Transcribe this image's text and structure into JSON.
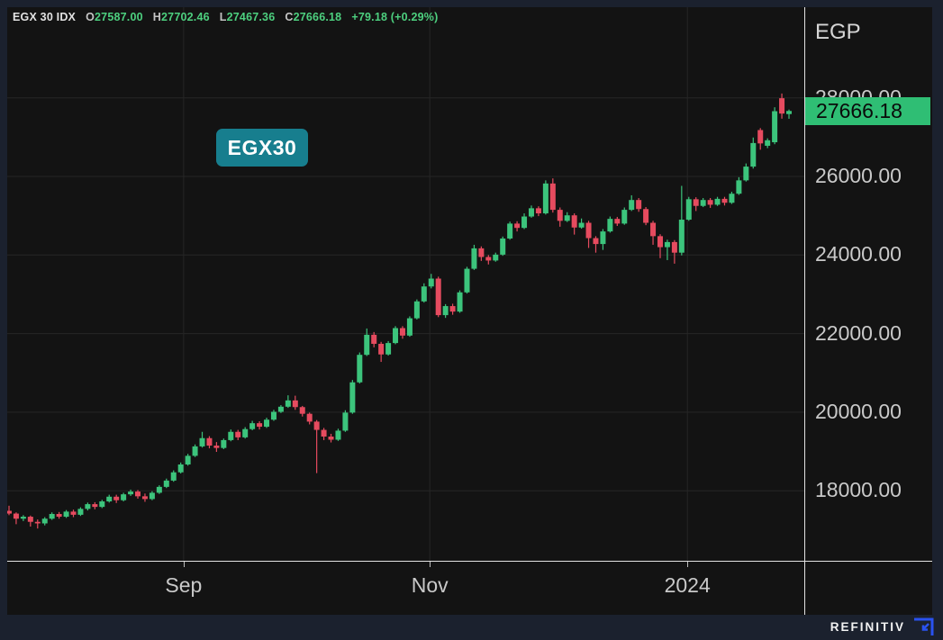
{
  "legend": {
    "instrument": "EGX 30 IDX",
    "o_label": "O",
    "o_value": "27587.00",
    "h_label": "H",
    "h_value": "27702.46",
    "l_label": "L",
    "l_value": "27467.36",
    "c_label": "C",
    "c_value": "27666.18",
    "change": "+79.18 (+0.29%)"
  },
  "badges": {
    "series_label": "EGX30",
    "last_price": "27666.18"
  },
  "axis": {
    "currency": "EGP"
  },
  "branding": {
    "wordmark": "REFINITIV"
  },
  "colors": {
    "up": "#3cc47c",
    "down": "#e64b5f",
    "grid": "#262626",
    "axis_text": "#c9c9c9",
    "last_price_badge": "#2fbe74",
    "series_badge": "#177e8e",
    "legend_value": "#4dd07f",
    "refinitiv_blue": "#2a52f0"
  },
  "chart_data": {
    "type": "candlestick",
    "title": "EGX 30 IDX",
    "currency": "EGP",
    "legend_position": "top-left",
    "grid": true,
    "ylim": [
      16800,
      28400
    ],
    "last_close": 27666.18,
    "y_ticks": [
      "28000.00",
      "26000.00",
      "24000.00",
      "22000.00",
      "20000.00",
      "18000.00"
    ],
    "y_tick_values": [
      28000,
      26000,
      24000,
      22000,
      20000,
      18000
    ],
    "x_ticks": [
      {
        "label": "Sep",
        "index": 24.4
      },
      {
        "label": "Nov",
        "index": 58.8
      },
      {
        "label": "2024",
        "index": 94.8
      }
    ],
    "candles_ohlc": [
      [
        17490,
        17620,
        17380,
        17420
      ],
      [
        17420,
        17450,
        17150,
        17290
      ],
      [
        17290,
        17380,
        17230,
        17340
      ],
      [
        17340,
        17370,
        17090,
        17210
      ],
      [
        17210,
        17270,
        17040,
        17170
      ],
      [
        17170,
        17330,
        17120,
        17290
      ],
      [
        17290,
        17450,
        17260,
        17410
      ],
      [
        17410,
        17460,
        17290,
        17340
      ],
      [
        17340,
        17510,
        17310,
        17470
      ],
      [
        17470,
        17520,
        17330,
        17390
      ],
      [
        17390,
        17580,
        17360,
        17540
      ],
      [
        17540,
        17700,
        17500,
        17660
      ],
      [
        17660,
        17710,
        17530,
        17590
      ],
      [
        17590,
        17770,
        17560,
        17730
      ],
      [
        17730,
        17900,
        17700,
        17850
      ],
      [
        17850,
        17900,
        17690,
        17760
      ],
      [
        17760,
        17950,
        17730,
        17910
      ],
      [
        17910,
        18030,
        17870,
        17980
      ],
      [
        17980,
        18020,
        17800,
        17860
      ],
      [
        17860,
        17930,
        17720,
        17790
      ],
      [
        17790,
        17990,
        17760,
        17950
      ],
      [
        17950,
        18140,
        17920,
        18100
      ],
      [
        18100,
        18310,
        18070,
        18260
      ],
      [
        18260,
        18520,
        18230,
        18470
      ],
      [
        18470,
        18720,
        18440,
        18670
      ],
      [
        18670,
        18940,
        18640,
        18890
      ],
      [
        18890,
        19180,
        18860,
        19130
      ],
      [
        19130,
        19500,
        19100,
        19340
      ],
      [
        19340,
        19390,
        19080,
        19150
      ],
      [
        19150,
        19240,
        18990,
        19090
      ],
      [
        19090,
        19330,
        19060,
        19290
      ],
      [
        19290,
        19560,
        19260,
        19500
      ],
      [
        19500,
        19550,
        19290,
        19360
      ],
      [
        19360,
        19620,
        19330,
        19570
      ],
      [
        19570,
        19780,
        19540,
        19720
      ],
      [
        19720,
        19770,
        19560,
        19630
      ],
      [
        19630,
        19860,
        19600,
        19810
      ],
      [
        19810,
        20060,
        19780,
        20010
      ],
      [
        20010,
        20180,
        19980,
        20140
      ],
      [
        20140,
        20430,
        20110,
        20300
      ],
      [
        20300,
        20420,
        20060,
        20130
      ],
      [
        20130,
        20160,
        19890,
        19960
      ],
      [
        19960,
        19990,
        19690,
        19760
      ],
      [
        19760,
        19800,
        18450,
        19550
      ],
      [
        19550,
        19600,
        19290,
        19380
      ],
      [
        19380,
        19450,
        19230,
        19300
      ],
      [
        19300,
        19580,
        19270,
        19530
      ],
      [
        19530,
        20050,
        19500,
        19990
      ],
      [
        19990,
        20820,
        19960,
        20760
      ],
      [
        20760,
        21520,
        20730,
        21460
      ],
      [
        21460,
        22130,
        21430,
        21970
      ],
      [
        21970,
        22040,
        21650,
        21740
      ],
      [
        21740,
        21790,
        21280,
        21470
      ],
      [
        21470,
        21810,
        21440,
        21760
      ],
      [
        21760,
        22190,
        21730,
        22140
      ],
      [
        22140,
        22190,
        21870,
        21950
      ],
      [
        21950,
        22440,
        21920,
        22390
      ],
      [
        22390,
        22870,
        22360,
        22820
      ],
      [
        22820,
        23280,
        22790,
        23200
      ],
      [
        23200,
        23520,
        23150,
        23400
      ],
      [
        23400,
        23450,
        22420,
        22470
      ],
      [
        22470,
        22750,
        22400,
        22700
      ],
      [
        22700,
        22760,
        22480,
        22560
      ],
      [
        22560,
        23100,
        22530,
        23050
      ],
      [
        23050,
        23700,
        23020,
        23650
      ],
      [
        23650,
        24260,
        23620,
        24170
      ],
      [
        24170,
        24220,
        23850,
        23950
      ],
      [
        23950,
        24000,
        23760,
        23860
      ],
      [
        23860,
        24060,
        23830,
        24010
      ],
      [
        24010,
        24470,
        23980,
        24420
      ],
      [
        24420,
        24850,
        24390,
        24800
      ],
      [
        24800,
        24860,
        24600,
        24690
      ],
      [
        24690,
        25060,
        24660,
        24980
      ],
      [
        24980,
        25260,
        24950,
        25190
      ],
      [
        25190,
        25240,
        24990,
        25060
      ],
      [
        25060,
        25900,
        25030,
        25820
      ],
      [
        25820,
        25950,
        25080,
        25150
      ],
      [
        25150,
        25210,
        24720,
        24870
      ],
      [
        24870,
        25090,
        24840,
        25010
      ],
      [
        25010,
        25060,
        24520,
        24700
      ],
      [
        24700,
        24930,
        24670,
        24820
      ],
      [
        24820,
        24870,
        24180,
        24430
      ],
      [
        24430,
        24480,
        24060,
        24280
      ],
      [
        24280,
        24660,
        24130,
        24600
      ],
      [
        24600,
        24980,
        24570,
        24920
      ],
      [
        24920,
        24970,
        24740,
        24800
      ],
      [
        24800,
        25210,
        24770,
        25150
      ],
      [
        25150,
        25520,
        25120,
        25400
      ],
      [
        25400,
        25450,
        25100,
        25170
      ],
      [
        25170,
        25220,
        24760,
        24820
      ],
      [
        24820,
        24870,
        24260,
        24480
      ],
      [
        24480,
        24530,
        23920,
        24200
      ],
      [
        24200,
        24390,
        23870,
        24330
      ],
      [
        24330,
        24380,
        23780,
        24060
      ],
      [
        24060,
        25760,
        23990,
        24900
      ],
      [
        24900,
        25480,
        24870,
        25420
      ],
      [
        25420,
        25470,
        25120,
        25250
      ],
      [
        25250,
        25450,
        25220,
        25400
      ],
      [
        25400,
        25450,
        25200,
        25280
      ],
      [
        25280,
        25480,
        25250,
        25430
      ],
      [
        25430,
        25480,
        25260,
        25330
      ],
      [
        25330,
        25610,
        25300,
        25560
      ],
      [
        25560,
        25980,
        25530,
        25900
      ],
      [
        25900,
        26330,
        25870,
        26250
      ],
      [
        26250,
        26990,
        26200,
        26850
      ],
      [
        27180,
        27230,
        26680,
        26840
      ],
      [
        26780,
        26970,
        26720,
        26920
      ],
      [
        26870,
        27760,
        26820,
        27660
      ],
      [
        27990,
        28110,
        27470,
        27600
      ],
      [
        27587,
        27702.46,
        27467.36,
        27666.18
      ]
    ]
  }
}
